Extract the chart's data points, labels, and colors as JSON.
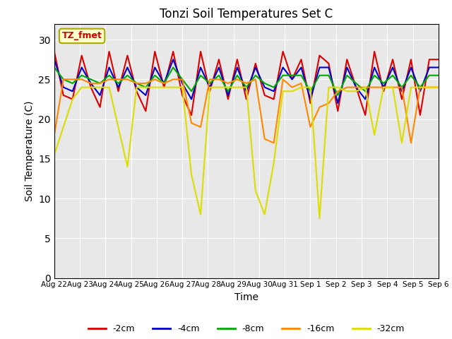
{
  "title": "Tonzi Soil Temperatures Set C",
  "xlabel": "Time",
  "ylabel": "Soil Temperature (C)",
  "ylim": [
    0,
    32
  ],
  "yticks": [
    0,
    5,
    10,
    15,
    20,
    25,
    30
  ],
  "bg_color": "#e8e8e8",
  "annotation_text": "TZ_fmet",
  "annotation_bg": "#ffffcc",
  "annotation_border": "#aaaa00",
  "annotation_text_color": "#cc0000",
  "legend_labels": [
    "-2cm",
    "-4cm",
    "-8cm",
    "-16cm",
    "-32cm"
  ],
  "line_colors": [
    "#dd0000",
    "#0000cc",
    "#00aa00",
    "#ff8800",
    "#dddd00"
  ],
  "x_labels": [
    "Aug 22",
    "Aug 23",
    "Aug 24",
    "Aug 25",
    "Aug 26",
    "Aug 27",
    "Aug 28",
    "Aug 29",
    "Aug 30",
    "Aug 31",
    "Sep 1",
    "Sep 2",
    "Sep 3",
    "Sep 4",
    "Sep 5",
    "Sep 6"
  ],
  "series": {
    "neg2cm": [
      28.5,
      23.0,
      22.5,
      28.0,
      24.0,
      21.5,
      28.5,
      23.5,
      28.0,
      23.5,
      21.0,
      28.5,
      24.0,
      28.5,
      23.0,
      20.5,
      28.5,
      23.5,
      27.5,
      22.5,
      27.5,
      22.5,
      27.0,
      23.0,
      22.5,
      28.5,
      25.0,
      27.5,
      22.0,
      28.0,
      27.0,
      21.0,
      27.5,
      24.0,
      20.5,
      28.5,
      23.5,
      27.5,
      22.5,
      27.5,
      20.5,
      27.5,
      27.5
    ],
    "neg4cm": [
      27.5,
      24.0,
      23.5,
      26.5,
      24.5,
      23.0,
      26.5,
      24.0,
      26.5,
      24.0,
      23.0,
      26.5,
      24.5,
      27.5,
      24.5,
      22.5,
      26.5,
      24.0,
      26.5,
      23.0,
      26.5,
      23.5,
      26.5,
      24.0,
      23.5,
      26.5,
      25.0,
      26.5,
      22.5,
      26.5,
      26.5,
      22.0,
      26.5,
      24.0,
      22.5,
      26.5,
      24.0,
      26.5,
      23.5,
      26.5,
      23.5,
      26.5,
      26.5
    ],
    "neg8cm": [
      26.5,
      25.0,
      24.5,
      25.5,
      25.0,
      24.5,
      25.5,
      24.5,
      25.5,
      24.5,
      24.0,
      25.5,
      24.5,
      26.5,
      25.0,
      23.5,
      25.5,
      24.5,
      25.5,
      23.5,
      25.5,
      24.0,
      25.5,
      24.5,
      24.0,
      25.5,
      25.5,
      25.5,
      23.5,
      25.5,
      25.5,
      23.0,
      25.5,
      24.5,
      23.5,
      25.5,
      24.5,
      25.5,
      24.0,
      25.5,
      24.0,
      25.5,
      25.5
    ],
    "neg16cm": [
      18.0,
      25.0,
      25.0,
      25.0,
      24.5,
      24.5,
      25.0,
      25.0,
      25.0,
      24.5,
      24.5,
      25.0,
      24.5,
      25.0,
      25.0,
      19.5,
      19.0,
      25.0,
      25.0,
      24.5,
      25.0,
      24.5,
      25.0,
      17.5,
      17.0,
      25.0,
      24.0,
      24.5,
      19.0,
      21.5,
      22.0,
      23.5,
      24.0,
      24.0,
      24.0,
      24.0,
      24.0,
      24.0,
      24.0,
      17.0,
      24.0,
      24.0,
      24.0
    ],
    "neg32cm": [
      15.5,
      19.0,
      22.5,
      24.0,
      24.0,
      24.0,
      24.0,
      19.0,
      14.0,
      24.0,
      24.0,
      24.0,
      24.0,
      24.0,
      24.0,
      13.0,
      8.0,
      24.0,
      24.0,
      24.0,
      24.0,
      24.0,
      11.0,
      8.0,
      14.5,
      23.5,
      23.5,
      24.0,
      24.0,
      7.5,
      24.0,
      24.0,
      23.5,
      23.5,
      24.0,
      18.0,
      24.0,
      24.0,
      17.0,
      24.0,
      24.0,
      24.0,
      24.0
    ]
  }
}
